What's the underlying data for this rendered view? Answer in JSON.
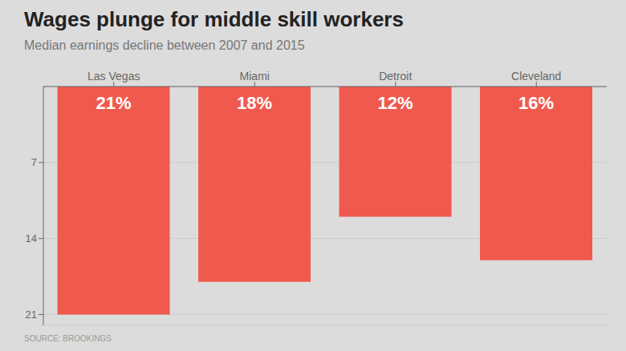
{
  "chart_data": {
    "type": "bar",
    "title": "Wages plunge for middle skill workers",
    "subtitle": "Median earnings decline between 2007 and 2015",
    "source": "SOURCE: BROOKINGS",
    "categories": [
      "Las Vegas",
      "Miami",
      "Detroit",
      "Cleveland"
    ],
    "values": [
      21,
      18,
      12,
      16
    ],
    "value_labels": [
      "21%",
      "18%",
      "12%",
      "16%"
    ],
    "color": "#f05a4e",
    "ylim": [
      0,
      22
    ],
    "yticks": [
      7,
      14,
      21
    ],
    "grid": true,
    "data_labels": true
  }
}
